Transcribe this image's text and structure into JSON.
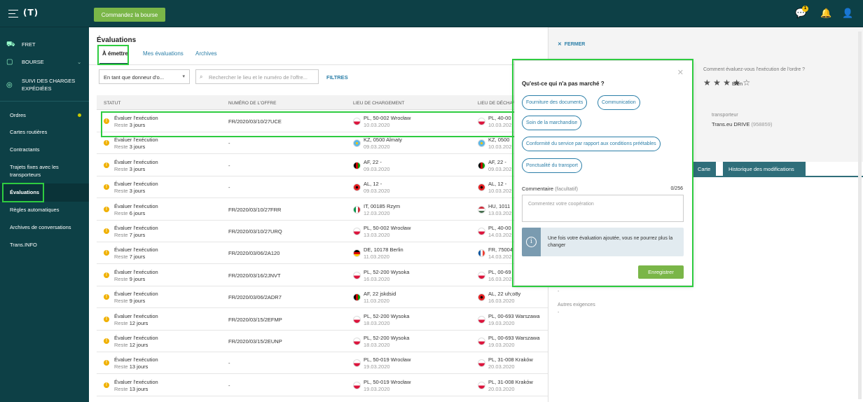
{
  "topbar": {
    "logo": "(T)",
    "order_button": "Commandez la bourse",
    "notif_count": "1"
  },
  "sidebar": {
    "fret": "FRET",
    "bourse": "BOURSE",
    "suivi1": "SUIVI DES CHARGES",
    "suivi2": "EXPÉDIÉES",
    "items": [
      "Ordres",
      "Cartes routières",
      "Contractants",
      "Trajets fixes avec les",
      "transporteurs",
      "Évaluations",
      "Règles automatiques",
      "Archives de conversations",
      "Trans.INFO"
    ]
  },
  "main": {
    "title": "Évaluations",
    "tabs": [
      "À émettre",
      "Mes évaluations",
      "Archives"
    ],
    "filter_select": "En tant que donneur d'o...",
    "search_placeholder": "Rechercher le lieu et le numéro de l'offre...",
    "filters_label": "FILTRES",
    "columns": [
      "STATUT",
      "NUMÉRO DE L'OFFRE",
      "LIEU DE CHARGEMENT",
      "LIEU DE DÉCHARG"
    ],
    "rows": [
      {
        "status": "Évaluer l'exécution",
        "rem": "Reste",
        "days": "3 jours",
        "offer": "FR/2020/03/10/27UCE",
        "load": "PL, 50-002 Wrocław",
        "load_date": "10.03.2020",
        "unload": "PL, 40-00",
        "unload_date": "10.03.202",
        "lf": "pl",
        "uf": "pl"
      },
      {
        "status": "Évaluer l'exécution",
        "rem": "Reste",
        "days": "3 jours",
        "offer": "-",
        "load": "KZ, 0500 Almaty",
        "load_date": "09.03.2020",
        "unload": "KZ, 0500",
        "unload_date": "10.03.202",
        "lf": "kz",
        "uf": "kz"
      },
      {
        "status": "Évaluer l'exécution",
        "rem": "Reste",
        "days": "3 jours",
        "offer": "-",
        "load": "AF, 22 -",
        "load_date": "09.03.2020",
        "unload": "AF, 22 -",
        "unload_date": "09.03.202",
        "lf": "af",
        "uf": "af"
      },
      {
        "status": "Évaluer l'exécution",
        "rem": "Reste",
        "days": "3 jours",
        "offer": "-",
        "load": "AL, 12 -",
        "load_date": "09.03.2020",
        "unload": "AL, 12 -",
        "unload_date": "10.03.202",
        "lf": "al",
        "uf": "al"
      },
      {
        "status": "Évaluer l'exécution",
        "rem": "Reste",
        "days": "6 jours",
        "offer": "FR/2020/03/10/27FRR",
        "load": "IT, 00185 Rzym",
        "load_date": "12.03.2020",
        "unload": "HU, 1011",
        "unload_date": "13.03.202",
        "lf": "it",
        "uf": "hu"
      },
      {
        "status": "Évaluer l'exécution",
        "rem": "Reste",
        "days": "7 jours",
        "offer": "FR/2020/03/10/27URQ",
        "load": "PL, 50-002 Wrocław",
        "load_date": "13.03.2020",
        "unload": "PL, 40-00",
        "unload_date": "14.03.202",
        "lf": "pl",
        "uf": "pl"
      },
      {
        "status": "Évaluer l'exécution",
        "rem": "Reste",
        "days": "7 jours",
        "offer": "FR/2020/03/06/2A120",
        "load": "DE, 10178 Berlin",
        "load_date": "11.03.2020",
        "unload": "FR, 75004",
        "unload_date": "14.03.202",
        "lf": "de",
        "uf": "fr"
      },
      {
        "status": "Évaluer l'exécution",
        "rem": "Reste",
        "days": "9 jours",
        "offer": "FR/2020/03/16/2JNVT",
        "load": "PL, 52-200 Wysoka",
        "load_date": "16.03.2020",
        "unload": "PL, 00-69",
        "unload_date": "16.03.202",
        "lf": "pl",
        "uf": "pl"
      },
      {
        "status": "Évaluer l'exécution",
        "rem": "Reste",
        "days": "9 jours",
        "offer": "FR/2020/03/06/2ADR7",
        "load": "AF, 22 jskdsid",
        "load_date": "11.03.2020",
        "unload": "AL, 22 uh;o8y",
        "unload_date": "16.03.2020",
        "lf": "af",
        "uf": "al"
      },
      {
        "status": "Évaluer l'exécution",
        "rem": "Reste",
        "days": "12 jours",
        "offer": "FR/2020/03/15/2EFMP",
        "load": "PL, 52-200 Wysoka",
        "load_date": "18.03.2020",
        "unload": "PL, 00-693 Warszawa",
        "unload_date": "19.03.2020",
        "lf": "pl",
        "uf": "pl"
      },
      {
        "status": "Évaluer l'exécution",
        "rem": "Reste",
        "days": "12 jours",
        "offer": "FR/2020/03/15/2EUNP",
        "load": "PL, 52-200 Wysoka",
        "load_date": "18.03.2020",
        "unload": "PL, 00-693 Warszawa",
        "unload_date": "19.03.2020",
        "lf": "pl",
        "uf": "pl"
      },
      {
        "status": "Évaluer l'exécution",
        "rem": "Reste",
        "days": "13 jours",
        "offer": "-",
        "load": "PL, 50-019 Wrocław",
        "load_date": "19.03.2020",
        "unload": "PL, 31-008 Kraków",
        "unload_date": "20.03.2020",
        "lf": "pl",
        "uf": "pl"
      },
      {
        "status": "Évaluer l'exécution",
        "rem": "Reste",
        "days": "13 jours",
        "offer": "-",
        "load": "PL, 50-019 Wrocław",
        "load_date": "19.03.2020",
        "unload": "PL, 31-008 Kraków",
        "unload_date": "20.03.2020",
        "lf": "pl",
        "uf": "pl"
      }
    ]
  },
  "panel": {
    "close": "FERMER",
    "rate_question": "Comment évaluez-vous l'exécution de l'ordre ?",
    "stars": "★ ★ ★ ★ ☆",
    "rating_label": "Bien",
    "carrier_label": "transporteur",
    "carrier_name": "Trans.eu DRIVE",
    "carrier_id": "(958859)",
    "tabs": [
      "Carte",
      "Historique des modifications"
    ],
    "dash1": "-",
    "other_label": "Autres exigences",
    "dash2": "-"
  },
  "popup": {
    "title": "Qu'est-ce qui n'a pas marché ?",
    "chips": [
      "Fourniture des documents",
      "Communication",
      "Soin de la marchandise",
      "Conformité du service par rapport aux conditions préétables",
      "Ponctualité du transport"
    ],
    "comment_label": "Commentaire",
    "comment_optional": "(facultatif)",
    "counter": "0/256",
    "comment_placeholder": "Commentez votre coopération",
    "info_text": "Une fois votre évaluation ajoutée, vous ne pourrez plus la changer",
    "save": "Enregistrer"
  }
}
